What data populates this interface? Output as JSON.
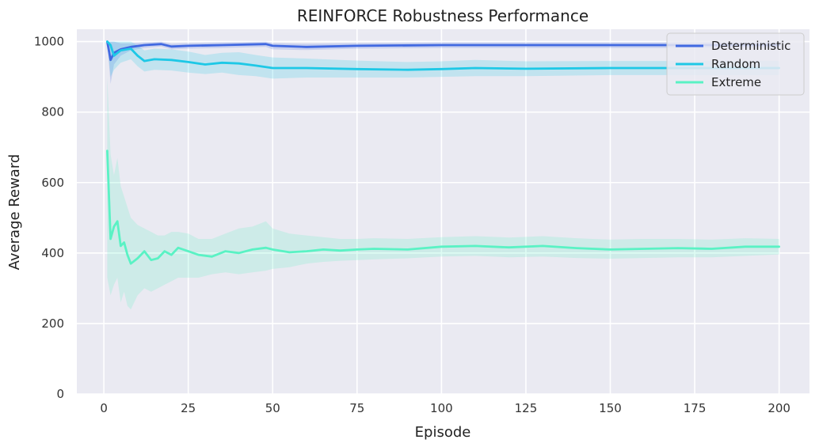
{
  "chart_data": {
    "type": "line",
    "title": "REINFORCE Robustness Performance",
    "xlabel": "Episode",
    "ylabel": "Average Reward",
    "xlim": [
      -8,
      209
    ],
    "ylim": [
      0,
      1035
    ],
    "xticks": [
      0,
      25,
      50,
      75,
      100,
      125,
      150,
      175,
      200
    ],
    "yticks": [
      0,
      200,
      400,
      600,
      800,
      1000
    ],
    "grid": true,
    "background": "#eaeaf2",
    "legend_position": "top-right",
    "series": [
      {
        "name": "Deterministic",
        "color": "#4169e1",
        "points": [
          [
            1,
            1000
          ],
          [
            2,
            948
          ],
          [
            3,
            968
          ],
          [
            5,
            978
          ],
          [
            8,
            985
          ],
          [
            12,
            990
          ],
          [
            17,
            993
          ],
          [
            20,
            986
          ],
          [
            25,
            988
          ],
          [
            35,
            990
          ],
          [
            48,
            993
          ],
          [
            50,
            988
          ],
          [
            60,
            985
          ],
          [
            75,
            988
          ],
          [
            100,
            990
          ],
          [
            125,
            990
          ],
          [
            150,
            990
          ],
          [
            175,
            990
          ],
          [
            200,
            990
          ]
        ],
        "band": [
          [
            1,
            1000,
            1000
          ],
          [
            2,
            880,
            1000
          ],
          [
            3,
            935,
            1000
          ],
          [
            5,
            960,
            995
          ],
          [
            8,
            975,
            995
          ],
          [
            12,
            982,
            998
          ],
          [
            17,
            986,
            1000
          ],
          [
            20,
            978,
            994
          ],
          [
            25,
            980,
            996
          ],
          [
            35,
            982,
            998
          ],
          [
            48,
            985,
            1000
          ],
          [
            50,
            978,
            996
          ],
          [
            60,
            976,
            994
          ],
          [
            75,
            980,
            996
          ],
          [
            100,
            982,
            998
          ],
          [
            125,
            982,
            998
          ],
          [
            150,
            982,
            998
          ],
          [
            175,
            982,
            998
          ],
          [
            200,
            982,
            998
          ]
        ]
      },
      {
        "name": "Random",
        "color": "#1ec8e6",
        "points": [
          [
            1,
            1000
          ],
          [
            2,
            990
          ],
          [
            3,
            960
          ],
          [
            5,
            975
          ],
          [
            8,
            980
          ],
          [
            10,
            960
          ],
          [
            12,
            945
          ],
          [
            15,
            950
          ],
          [
            20,
            948
          ],
          [
            25,
            942
          ],
          [
            30,
            935
          ],
          [
            35,
            940
          ],
          [
            40,
            938
          ],
          [
            45,
            932
          ],
          [
            50,
            925
          ],
          [
            60,
            925
          ],
          [
            75,
            922
          ],
          [
            90,
            920
          ],
          [
            100,
            922
          ],
          [
            110,
            925
          ],
          [
            125,
            923
          ],
          [
            150,
            925
          ],
          [
            175,
            925
          ],
          [
            200,
            925
          ]
        ],
        "band": [
          [
            1,
            1000,
            1000
          ],
          [
            2,
            900,
            1000
          ],
          [
            3,
            920,
            1000
          ],
          [
            5,
            940,
            1000
          ],
          [
            8,
            950,
            1000
          ],
          [
            10,
            930,
            990
          ],
          [
            12,
            915,
            975
          ],
          [
            15,
            920,
            980
          ],
          [
            20,
            918,
            978
          ],
          [
            25,
            912,
            972
          ],
          [
            30,
            908,
            962
          ],
          [
            35,
            912,
            968
          ],
          [
            40,
            905,
            970
          ],
          [
            45,
            902,
            962
          ],
          [
            50,
            895,
            955
          ],
          [
            60,
            898,
            952
          ],
          [
            75,
            898,
            946
          ],
          [
            90,
            898,
            942
          ],
          [
            100,
            900,
            944
          ],
          [
            110,
            902,
            948
          ],
          [
            125,
            902,
            944
          ],
          [
            150,
            905,
            945
          ],
          [
            175,
            905,
            945
          ],
          [
            200,
            905,
            945
          ]
        ]
      },
      {
        "name": "Extreme",
        "color": "#5af2c4",
        "points": [
          [
            1,
            690
          ],
          [
            2,
            440
          ],
          [
            3,
            475
          ],
          [
            4,
            490
          ],
          [
            5,
            420
          ],
          [
            6,
            430
          ],
          [
            7,
            395
          ],
          [
            8,
            370
          ],
          [
            10,
            385
          ],
          [
            12,
            405
          ],
          [
            14,
            380
          ],
          [
            16,
            385
          ],
          [
            18,
            405
          ],
          [
            20,
            395
          ],
          [
            22,
            415
          ],
          [
            25,
            405
          ],
          [
            28,
            395
          ],
          [
            32,
            390
          ],
          [
            36,
            405
          ],
          [
            40,
            400
          ],
          [
            44,
            410
          ],
          [
            48,
            415
          ],
          [
            50,
            410
          ],
          [
            55,
            402
          ],
          [
            60,
            405
          ],
          [
            65,
            410
          ],
          [
            70,
            407
          ],
          [
            75,
            410
          ],
          [
            80,
            412
          ],
          [
            90,
            410
          ],
          [
            100,
            418
          ],
          [
            110,
            420
          ],
          [
            120,
            416
          ],
          [
            130,
            420
          ],
          [
            140,
            414
          ],
          [
            150,
            410
          ],
          [
            160,
            412
          ],
          [
            170,
            414
          ],
          [
            180,
            412
          ],
          [
            190,
            418
          ],
          [
            200,
            418
          ]
        ],
        "band": [
          [
            1,
            330,
            900
          ],
          [
            2,
            280,
            680
          ],
          [
            3,
            310,
            620
          ],
          [
            4,
            330,
            670
          ],
          [
            5,
            260,
            590
          ],
          [
            6,
            290,
            560
          ],
          [
            7,
            250,
            530
          ],
          [
            8,
            240,
            500
          ],
          [
            10,
            280,
            480
          ],
          [
            12,
            300,
            470
          ],
          [
            14,
            290,
            460
          ],
          [
            16,
            300,
            450
          ],
          [
            18,
            310,
            450
          ],
          [
            20,
            320,
            460
          ],
          [
            22,
            330,
            460
          ],
          [
            25,
            330,
            455
          ],
          [
            28,
            330,
            440
          ],
          [
            32,
            340,
            440
          ],
          [
            36,
            345,
            455
          ],
          [
            40,
            340,
            470
          ],
          [
            44,
            345,
            475
          ],
          [
            48,
            350,
            490
          ],
          [
            50,
            355,
            470
          ],
          [
            55,
            360,
            455
          ],
          [
            60,
            370,
            450
          ],
          [
            65,
            375,
            445
          ],
          [
            70,
            378,
            440
          ],
          [
            75,
            380,
            440
          ],
          [
            80,
            382,
            442
          ],
          [
            90,
            385,
            440
          ],
          [
            100,
            390,
            445
          ],
          [
            110,
            392,
            448
          ],
          [
            120,
            388,
            444
          ],
          [
            130,
            390,
            448
          ],
          [
            140,
            386,
            442
          ],
          [
            150,
            384,
            438
          ],
          [
            160,
            386,
            440
          ],
          [
            170,
            388,
            440
          ],
          [
            180,
            388,
            438
          ],
          [
            190,
            392,
            442
          ],
          [
            200,
            396,
            440
          ]
        ]
      }
    ]
  }
}
